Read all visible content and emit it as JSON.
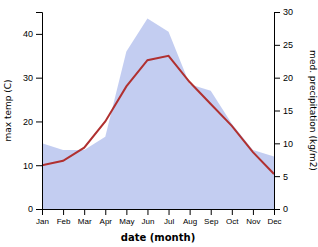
{
  "chart_data": {
    "type": "line",
    "xlabel": "date (month)",
    "ylabel": "max temp (C)",
    "y2label": "med. precipitation (kg/m2)",
    "categories": [
      "Jan",
      "Feb",
      "Mar",
      "Apr",
      "May",
      "Jun",
      "Jul",
      "Aug",
      "Sep",
      "Oct",
      "Nov",
      "Dec"
    ],
    "series": [
      {
        "type": "area",
        "color": "#b8c4ee",
        "axis": "y2",
        "values": [
          10,
          9,
          9,
          11,
          24,
          29,
          27,
          19,
          18,
          13,
          9,
          8
        ]
      },
      {
        "type": "line",
        "color": "#b03030",
        "values": [
          10,
          11,
          14,
          20,
          28,
          34,
          35,
          29,
          24,
          19,
          13,
          8
        ]
      }
    ],
    "ylim": [
      0,
      45
    ],
    "yticks": [
      0,
      10,
      20,
      30,
      40
    ],
    "y2lim": [
      0,
      30
    ],
    "y2ticks": [
      0,
      5,
      10,
      15,
      20,
      25,
      30
    ],
    "grid": false
  }
}
